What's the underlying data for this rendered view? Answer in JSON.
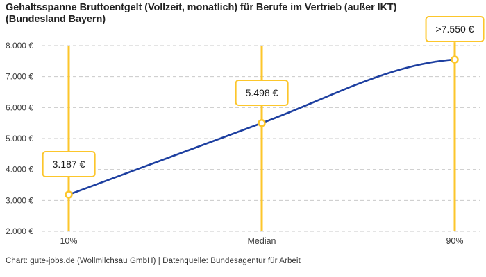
{
  "header": {
    "title_lines": [
      "Gehaltsspanne Bruttoentgelt (Vollzeit, monatlich) für Berufe im Vertrieb (außer IKT)",
      "(Bundesland Bayern)"
    ]
  },
  "footer": {
    "attribution": "Chart: gute-jobs.de (Wollmilchsau GmbH) | Datenquelle: Bundesagentur für Arbeit"
  },
  "chart_data": {
    "type": "line",
    "title": "Gehaltsspanne Bruttoentgelt (Vollzeit, monatlich) für Berufe im Vertrieb (außer IKT) (Bundesland Bayern)",
    "categories": [
      "10%",
      "Median",
      "90%"
    ],
    "values": [
      3187,
      5498,
      7550
    ],
    "point_labels": [
      "3.187 €",
      "5.498 €",
      ">7.550 €"
    ],
    "xlabel": "",
    "ylabel": "",
    "ylim": [
      2000,
      8000
    ],
    "grid": "horizontal-dashed",
    "legend": "none",
    "yticks": [
      {
        "value": 2000,
        "label": "2.000 €"
      },
      {
        "value": 3000,
        "label": "3.000 €"
      },
      {
        "value": 4000,
        "label": "4.000 €"
      },
      {
        "value": 5000,
        "label": "5.000 €"
      },
      {
        "value": 6000,
        "label": "6.000 €"
      },
      {
        "value": 7000,
        "label": "7.000 €"
      },
      {
        "value": 8000,
        "label": "8.000 €"
      }
    ],
    "colors": {
      "series_line": "#1D3FA0",
      "accent": "#FCC62B",
      "marker_fill": "#ffffff",
      "grid": "#c9c9c9",
      "axis_text": "#3d3d3d",
      "title_text": "#222222"
    }
  }
}
